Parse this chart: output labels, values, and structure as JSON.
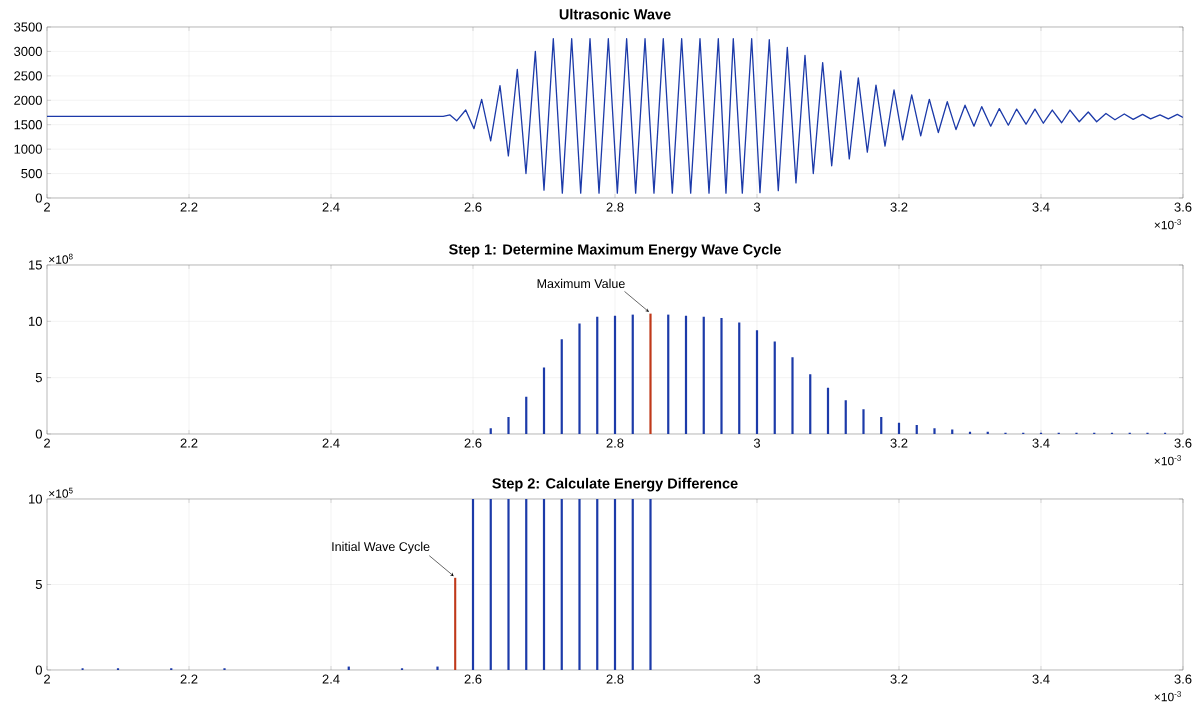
{
  "chart_data": [
    {
      "type": "line",
      "title": "Ultrasonic Wave",
      "xlabel": "×10$^{-3}$",
      "color": "#1c3aa9",
      "x": [
        2,
        2.1,
        2.2,
        2.3,
        2.4,
        2.5,
        2.558,
        2.5676,
        2.577,
        2.5897,
        2.6014,
        2.6122,
        2.6249,
        2.638,
        2.6498,
        2.6624,
        2.6746,
        2.6878,
        2.7,
        2.7131,
        2.7258,
        2.739,
        2.7517,
        2.7648,
        2.7775,
        2.7906,
        2.8033,
        2.8164,
        2.8291,
        2.8423,
        2.8549,
        2.868,
        2.8807,
        2.8939,
        2.9066,
        2.9197,
        2.9324,
        2.9455,
        2.9563,
        2.9666,
        2.9793,
        2.9925,
        3.0042,
        3.0173,
        3.03,
        3.0427,
        3.0549,
        3.0676,
        3.0793,
        3.0925,
        3.1052,
        3.1179,
        3.13,
        3.1427,
        3.1554,
        3.1676,
        3.1803,
        3.193,
        3.2052,
        3.2179,
        3.2306,
        3.2427,
        3.2554,
        3.268,
        3.2803,
        3.293,
        3.3056,
        3.3165,
        3.3292,
        3.3413,
        3.354,
        3.3657,
        3.3789,
        3.3915,
        3.4033,
        3.4159,
        3.4291,
        3.4408,
        3.4539,
        3.4666,
        3.4784,
        3.4915,
        3.5042,
        3.5173,
        3.5299,
        3.5431,
        3.5544,
        3.5676,
        3.5793,
        3.592,
        3.6
      ],
      "values": [
        1670,
        1670,
        1670,
        1670,
        1670,
        1670,
        1670,
        1700,
        1580,
        1800,
        1420,
        2020,
        1170,
        2300,
        860,
        2630,
        500,
        3000,
        160,
        3260,
        100,
        3260,
        100,
        3260,
        100,
        3260,
        100,
        3260,
        100,
        3260,
        100,
        3260,
        100,
        3260,
        100,
        3260,
        100,
        3260,
        100,
        3260,
        100,
        3260,
        110,
        3240,
        150,
        3080,
        310,
        2920,
        500,
        2770,
        660,
        2600,
        800,
        2460,
        940,
        2310,
        1060,
        2210,
        1190,
        2110,
        1270,
        2020,
        1340,
        1970,
        1400,
        1900,
        1470,
        1870,
        1470,
        1830,
        1490,
        1820,
        1510,
        1820,
        1530,
        1800,
        1540,
        1800,
        1560,
        1760,
        1560,
        1730,
        1600,
        1720,
        1610,
        1710,
        1620,
        1700,
        1620,
        1710,
        1650
      ],
      "xlim": [
        2,
        3.6
      ],
      "xticks": [
        2,
        2.2,
        2.4,
        2.6,
        2.8,
        3,
        3.2,
        3.4,
        3.6
      ],
      "ylim": [
        0,
        3500
      ],
      "yticks": [
        0,
        500,
        1000,
        1500,
        2000,
        2500,
        3000,
        3500
      ],
      "grid": true
    },
    {
      "type": "bar",
      "title": "Step 1: Determine Maximum Energy Wave Cycle",
      "xlabel": "×10$^{-3}$",
      "ylabel": "×10$^{8}$",
      "series": [
        {
          "color": "#1c3aa9",
          "x": [
            2.625,
            2.65,
            2.675,
            2.7,
            2.725,
            2.75,
            2.775,
            2.8,
            2.825,
            2.875,
            2.9,
            2.925,
            2.95,
            2.975,
            3,
            3.025,
            3.05,
            3.075,
            3.1,
            3.125,
            3.15,
            3.175,
            3.2,
            3.225,
            3.25,
            3.275,
            3.3,
            3.325,
            3.35,
            3.375,
            3.4,
            3.425,
            3.45,
            3.475,
            3.5,
            3.525,
            3.55,
            3.575
          ],
          "values": [
            0.5,
            1.5,
            3.3,
            5.9,
            8.4,
            9.8,
            10.4,
            10.5,
            10.6,
            10.6,
            10.5,
            10.4,
            10.3,
            9.9,
            9.2,
            8.2,
            6.8,
            5.3,
            4.1,
            3,
            2.2,
            1.5,
            1,
            0.8,
            0.5,
            0.4,
            0.2,
            0.2,
            0.1,
            0.1,
            0.1,
            0.1,
            0.1,
            0.1,
            0.1,
            0.1,
            0.1,
            0.1
          ]
        },
        {
          "color": "#c0391a",
          "x": [
            2.85
          ],
          "values": [
            10.7
          ]
        }
      ],
      "annotations": [
        {
          "text": "Maximum Value",
          "x": 2.85,
          "y": 10.7
        }
      ],
      "xlim": [
        2,
        3.6
      ],
      "xticks": [
        2,
        2.2,
        2.4,
        2.6,
        2.8,
        3,
        3.2,
        3.4,
        3.6
      ],
      "ylim": [
        0,
        15
      ],
      "yticks": [
        0,
        5,
        10,
        15
      ],
      "grid": true
    },
    {
      "type": "bar",
      "title": "Step 2: Calculate Energy Difference",
      "xlabel": "×10$^{-3}$",
      "ylabel": "×10$^{5}$",
      "series": [
        {
          "color": "#1c3aa9",
          "x": [
            2.05,
            2.1,
            2.175,
            2.25,
            2.425,
            2.5,
            2.55,
            2.6,
            2.625,
            2.65,
            2.675,
            2.7,
            2.725,
            2.75,
            2.775,
            2.8,
            2.825,
            2.85
          ],
          "values": [
            0.1,
            0.1,
            0.1,
            0.1,
            0.2,
            0.1,
            0.2,
            10,
            10,
            10,
            10,
            10,
            10,
            10,
            10,
            10,
            10,
            10
          ]
        },
        {
          "color": "#c0391a",
          "x": [
            2.575
          ],
          "values": [
            5.4
          ]
        }
      ],
      "annotations": [
        {
          "text": "Initial Wave Cycle",
          "x": 2.575,
          "y": 5.4
        }
      ],
      "xlim": [
        2,
        3.6
      ],
      "xticks": [
        2,
        2.2,
        2.4,
        2.6,
        2.8,
        3,
        3.2,
        3.4,
        3.6
      ],
      "ylim": [
        0,
        10
      ],
      "yticks": [
        0,
        5,
        10
      ],
      "grid": true
    }
  ]
}
